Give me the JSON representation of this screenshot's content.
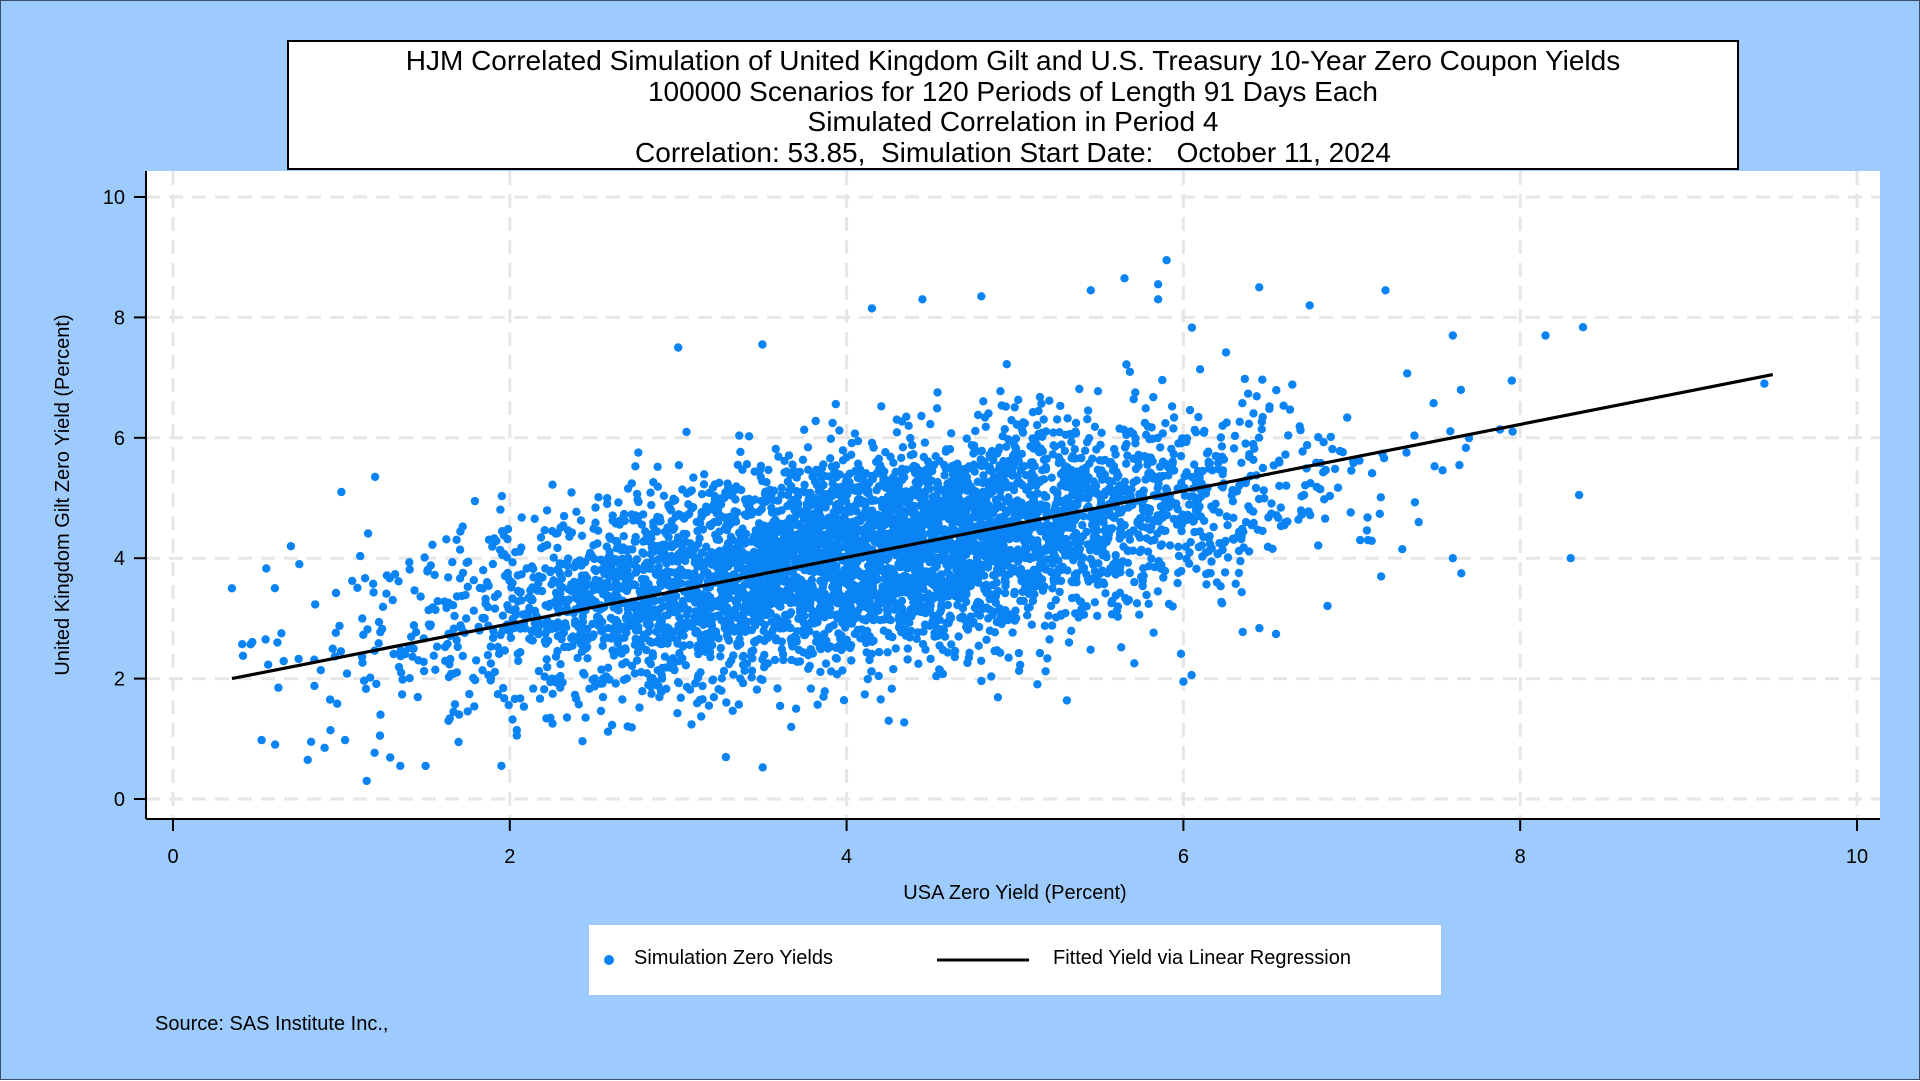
{
  "chart_data": {
    "type": "scatter",
    "title": [
      "HJM Correlated Simulation of United Kingdom Gilt and U.S. Treasury 10-Year Zero Coupon Yields",
      "100000 Scenarios for 120 Periods of Length 91 Days Each",
      "Simulated Correlation in Period 4",
      "Correlation: 53.85,  Simulation Start Date:   October 11, 2024"
    ],
    "xlabel": "USA Zero Yield (Percent)",
    "ylabel": "United Kingdom Gilt Zero Yield (Percent)",
    "xlim": [
      0,
      10
    ],
    "ylim": [
      0,
      10
    ],
    "xticks": [
      "0",
      "2",
      "4",
      "6",
      "8",
      "10"
    ],
    "yticks": [
      "0",
      "2",
      "4",
      "6",
      "8",
      "10"
    ],
    "grid": true,
    "legend_position": "bottom",
    "series": [
      {
        "name": "Simulation Zero Yields",
        "kind": "scatter",
        "color": "#0a84f5",
        "n_scenarios": 100000,
        "cloud": {
          "x_center": 4.1,
          "y_center": 4.05,
          "x_min": 0.35,
          "x_max": 9.5,
          "y_min": 0.3,
          "y_max": 9.0,
          "correlation": 0.5385
        },
        "outliers": [
          [
            0.35,
            3.5
          ],
          [
            0.55,
            2.65
          ],
          [
            0.62,
            2.6
          ],
          [
            0.7,
            4.2
          ],
          [
            0.75,
            3.9
          ],
          [
            0.8,
            0.65
          ],
          [
            0.82,
            0.95
          ],
          [
            0.9,
            0.85
          ],
          [
            1.0,
            5.1
          ],
          [
            1.15,
            0.3
          ],
          [
            1.2,
            5.35
          ],
          [
            1.35,
            0.55
          ],
          [
            1.5,
            0.55
          ],
          [
            1.95,
            0.55
          ],
          [
            3.0,
            7.5
          ],
          [
            3.5,
            7.55
          ],
          [
            4.15,
            8.15
          ],
          [
            4.45,
            8.3
          ],
          [
            4.8,
            8.35
          ],
          [
            5.45,
            8.45
          ],
          [
            5.65,
            8.65
          ],
          [
            5.85,
            8.55
          ],
          [
            5.85,
            8.3
          ],
          [
            5.9,
            8.95
          ],
          [
            6.45,
            8.5
          ],
          [
            6.75,
            8.2
          ],
          [
            7.2,
            8.45
          ],
          [
            7.6,
            7.7
          ],
          [
            7.95,
            6.95
          ],
          [
            8.15,
            7.7
          ],
          [
            8.3,
            4.0
          ],
          [
            8.35,
            5.05
          ],
          [
            9.45,
            6.9
          ],
          [
            6.0,
            1.95
          ],
          [
            7.65,
            3.75
          ],
          [
            7.6,
            4.0
          ],
          [
            7.3,
            4.15
          ],
          [
            7.05,
            4.3
          ],
          [
            4.25,
            1.3
          ],
          [
            3.7,
            1.5
          ],
          [
            2.45,
            1.35
          ]
        ]
      },
      {
        "name": "Fitted Yield via Linear Regression",
        "kind": "line",
        "color": "#000000",
        "x": [
          0.35,
          9.5
        ],
        "y": [
          2.0,
          7.05
        ]
      }
    ],
    "source": "Source: SAS Institute Inc.,"
  }
}
